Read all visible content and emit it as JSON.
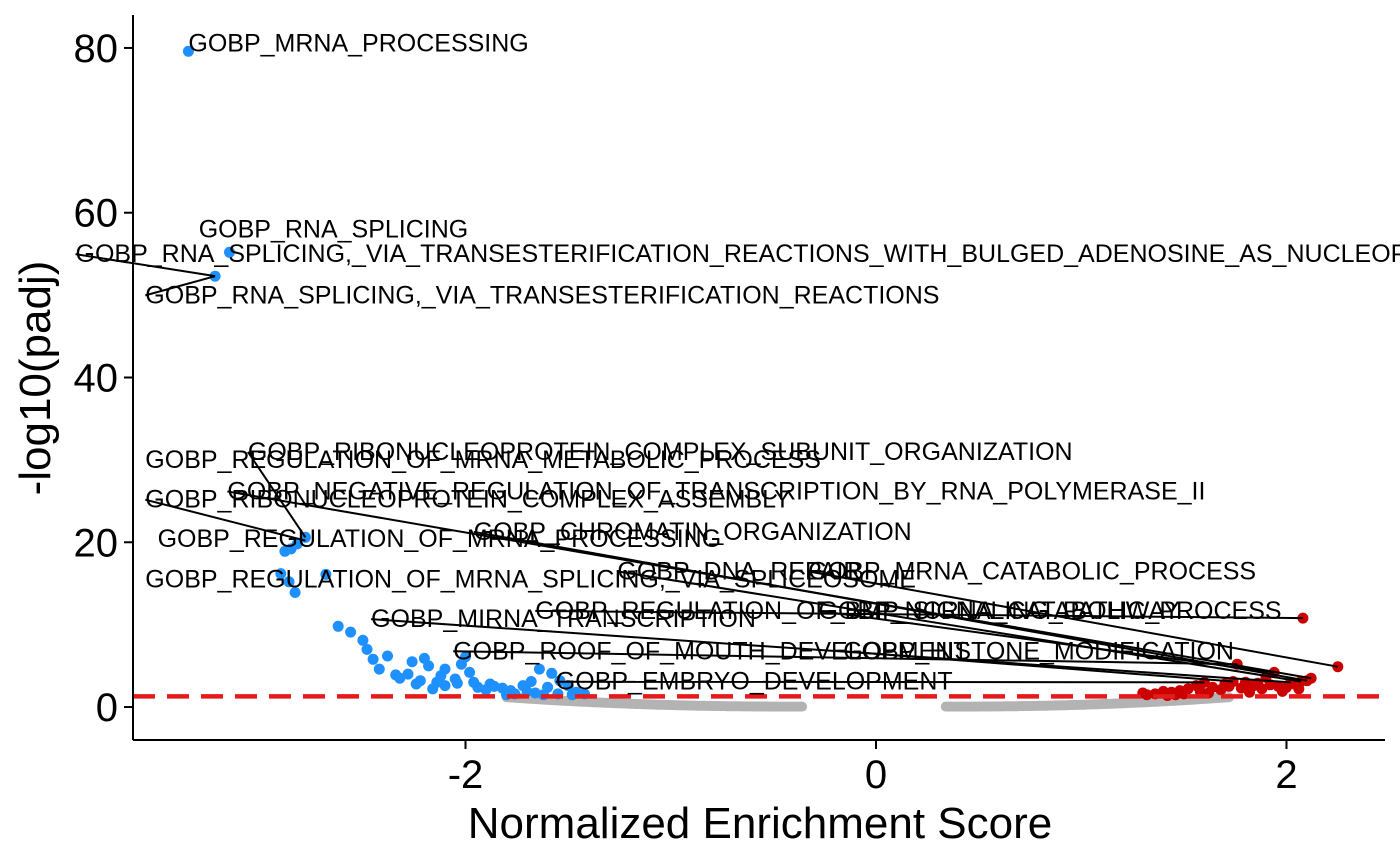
{
  "chart_data": {
    "type": "scatter",
    "xlabel": "Normalized Enrichment Score",
    "ylabel": "-log10(padj)",
    "xlim": [
      -3.62,
      2.48
    ],
    "ylim": [
      -4,
      84
    ],
    "x_ticks": [
      -2,
      0,
      2
    ],
    "y_ticks": [
      0,
      20,
      40,
      60,
      80
    ],
    "threshold_line": {
      "y": 1.3,
      "color": "#e41a1c",
      "style": "dashed"
    },
    "colors": {
      "down": "#1e90ff",
      "up": "#cc0000",
      "ns": "#b3b3b3"
    },
    "series": [
      {
        "group": "down",
        "points": [
          [
            -3.35,
            79.6
          ],
          [
            -3.15,
            55.2
          ],
          [
            -3.22,
            52.3
          ],
          [
            -2.78,
            20.6
          ],
          [
            -2.82,
            19.8
          ],
          [
            -2.85,
            19.2
          ],
          [
            -2.88,
            18.9
          ],
          [
            -2.9,
            16.2
          ],
          [
            -2.68,
            16.1
          ],
          [
            -2.86,
            15.2
          ],
          [
            -2.83,
            13.9
          ],
          [
            -2.62,
            9.8
          ],
          [
            -2.56,
            9.1
          ],
          [
            -2.5,
            8.1
          ],
          [
            -2.48,
            7.0
          ],
          [
            -2.38,
            6.2
          ],
          [
            -2.45,
            5.8
          ],
          [
            -2.26,
            5.5
          ],
          [
            -2.2,
            5.9
          ],
          [
            -2.18,
            5.0
          ],
          [
            -2.1,
            4.6
          ],
          [
            -2.28,
            4.0
          ],
          [
            -2.32,
            3.5
          ],
          [
            -2.22,
            3.2
          ],
          [
            -2.14,
            3.0
          ],
          [
            -2.05,
            3.4
          ],
          [
            -2.0,
            6.1
          ],
          [
            -1.98,
            4.2
          ],
          [
            -2.04,
            2.9
          ],
          [
            -1.94,
            2.4
          ],
          [
            -1.9,
            2.1
          ],
          [
            -2.1,
            2.6
          ],
          [
            -2.16,
            2.2
          ],
          [
            -1.86,
            2.5
          ],
          [
            -1.82,
            2.3
          ],
          [
            -1.78,
            2.0
          ],
          [
            -1.72,
            2.6
          ],
          [
            -1.68,
            3.1
          ],
          [
            -1.64,
            4.6
          ],
          [
            -1.58,
            4.1
          ],
          [
            -1.54,
            3.2
          ],
          [
            -1.6,
            2.4
          ],
          [
            -1.5,
            2.6
          ],
          [
            -1.46,
            1.8
          ],
          [
            -1.42,
            1.6
          ],
          [
            -1.7,
            1.9
          ],
          [
            -1.66,
            1.7
          ],
          [
            -1.76,
            1.6
          ],
          [
            -1.8,
            1.5
          ],
          [
            -1.62,
            1.5
          ],
          [
            -1.55,
            1.6
          ],
          [
            -1.48,
            1.5
          ],
          [
            -2.24,
            2.8
          ],
          [
            -2.12,
            3.8
          ],
          [
            -2.02,
            5.2
          ],
          [
            -2.42,
            4.6
          ],
          [
            -2.34,
            3.9
          ],
          [
            -1.96,
            3.0
          ],
          [
            -1.88,
            2.8
          ]
        ]
      },
      {
        "group": "up",
        "points": [
          [
            2.25,
            4.9
          ],
          [
            2.08,
            10.8
          ],
          [
            2.12,
            3.5
          ],
          [
            2.1,
            3.2
          ],
          [
            2.07,
            3.1
          ],
          [
            2.02,
            3.0
          ],
          [
            1.94,
            4.2
          ],
          [
            1.9,
            3.6
          ],
          [
            1.86,
            2.9
          ],
          [
            1.8,
            3.0
          ],
          [
            1.76,
            5.2
          ],
          [
            1.74,
            3.1
          ],
          [
            1.7,
            2.8
          ],
          [
            1.64,
            2.4
          ],
          [
            1.6,
            3.0
          ],
          [
            1.56,
            2.6
          ],
          [
            1.52,
            2.2
          ],
          [
            1.48,
            2.0
          ],
          [
            1.44,
            1.8
          ],
          [
            1.4,
            1.9
          ],
          [
            1.36,
            1.6
          ],
          [
            1.32,
            1.5
          ],
          [
            1.3,
            1.7
          ],
          [
            1.68,
            2.1
          ],
          [
            1.72,
            2.5
          ],
          [
            1.78,
            2.3
          ],
          [
            1.84,
            2.6
          ],
          [
            1.88,
            2.2
          ],
          [
            1.92,
            2.7
          ],
          [
            1.96,
            2.5
          ],
          [
            2.0,
            2.4
          ],
          [
            2.04,
            2.8
          ],
          [
            1.62,
            1.7
          ],
          [
            1.58,
            1.9
          ],
          [
            1.5,
            1.6
          ],
          [
            1.46,
            1.5
          ],
          [
            1.82,
            1.8
          ],
          [
            1.98,
            1.9
          ],
          [
            2.06,
            2.2
          ],
          [
            1.42,
            1.4
          ]
        ]
      }
    ],
    "ns_band": {
      "left": {
        "x_from": -1.8,
        "x_to": -0.36
      },
      "right": {
        "x_from": 0.34,
        "x_to": 1.72
      }
    },
    "labels": [
      {
        "text": "GOBP_MRNA_PROCESSING",
        "point": [
          -3.35,
          79.6
        ],
        "pos": [
          -3.35,
          79.6
        ],
        "leader": false
      },
      {
        "text": "GOBP_RNA_SPLICING",
        "point": [
          -3.15,
          55.2
        ],
        "pos": [
          -3.3,
          57.0
        ],
        "leader": false
      },
      {
        "text": "GOBP_RNA_SPLICING,_VIA_TRANSESTERIFICATION_REACTIONS_WITH_BULGED_ADENOSINE_AS_NUCLEOPHILE",
        "point": [
          -3.22,
          52.3
        ],
        "pos": [
          -3.9,
          54.0
        ],
        "leader": true
      },
      {
        "text": "GOBP_RNA_SPLICING,_VIA_TRANSESTERIFICATION_REACTIONS",
        "point": [
          -3.22,
          52.3
        ],
        "pos": [
          -3.56,
          49.0
        ],
        "leader": true
      },
      {
        "text": "GOBP_RIBONUCLEOPROTEIN_COMPLEX_SUBUNIT_ORGANIZATION",
        "point": [
          -2.78,
          20.6
        ],
        "pos": [
          -3.06,
          30.0
        ],
        "leader": true
      },
      {
        "text": "GOBP_REGULATION_OF_MRNA_METABOLIC_PROCESS",
        "point": [
          -2.78,
          20.4
        ],
        "pos": [
          -3.56,
          29.0
        ],
        "leader": false
      },
      {
        "text": "GOBP_NEGATIVE_REGULATION_OF_TRANSCRIPTION_BY_RNA_POLYMERASE_II",
        "point": [
          2.12,
          3.5
        ],
        "pos": [
          -3.16,
          25.2
        ],
        "leader": true
      },
      {
        "text": "GOBP_RIBONUCLEOPROTEIN_COMPLEX_ASSEMBLY",
        "point": [
          -2.78,
          20.2
        ],
        "pos": [
          -3.56,
          24.2
        ],
        "leader": true
      },
      {
        "text": "GOBP_CHROMATIN_ORGANIZATION",
        "point": [
          2.1,
          3.2
        ],
        "pos": [
          -1.96,
          20.3
        ],
        "leader": true
      },
      {
        "text": "GOBP_REGULATION_OF_MRNA_PROCESSING",
        "point": [
          -2.8,
          20.0
        ],
        "pos": [
          -3.5,
          19.4
        ],
        "leader": false
      },
      {
        "text": "GOBP_DNA_REPAIR",
        "point": [
          2.07,
          3.1
        ],
        "pos": [
          -1.26,
          15.5
        ],
        "leader": true
      },
      {
        "text": "GOBP_MRNA_CATABOLIC_PROCESS",
        "point": [
          2.25,
          4.9
        ],
        "pos": [
          -0.33,
          15.5
        ],
        "leader": true
      },
      {
        "text": "GOBP_REGULATION_OF_MRNA_SPLICING,_VIA_SPLICEOSOME",
        "point": [
          -2.86,
          15.2
        ],
        "pos": [
          -3.56,
          14.5
        ],
        "leader": false
      },
      {
        "text": "GOBP_REGULATION_OF_BMP_SIGNALING_PATHWAY",
        "point": [
          2.08,
          10.8
        ],
        "pos": [
          -1.66,
          10.7
        ],
        "leader": true
      },
      {
        "text": "GOBP_NCRNA_CATABOLIC_PROCESS",
        "point": [
          1.94,
          4.2
        ],
        "pos": [
          -0.28,
          10.7
        ],
        "leader": true
      },
      {
        "text": "GOBP_MIRNA_TRANSCRIPTION",
        "point": [
          2.02,
          3.0
        ],
        "pos": [
          -2.46,
          9.7
        ],
        "leader": true
      },
      {
        "text": "GOBP_ROOF_OF_MOUTH_DEVELOPMENT",
        "point": [
          1.76,
          5.2
        ],
        "pos": [
          -2.06,
          5.8
        ],
        "leader": true
      },
      {
        "text": "GOBP_HISTONE_MODIFICATION",
        "point": [
          1.74,
          3.1
        ],
        "pos": [
          -0.16,
          5.8
        ],
        "leader": true
      },
      {
        "text": "GOBP_EMBRYO_DEVELOPMENT",
        "point": [
          1.6,
          3.0
        ],
        "pos": [
          -1.56,
          2.1
        ],
        "leader": true
      }
    ]
  }
}
